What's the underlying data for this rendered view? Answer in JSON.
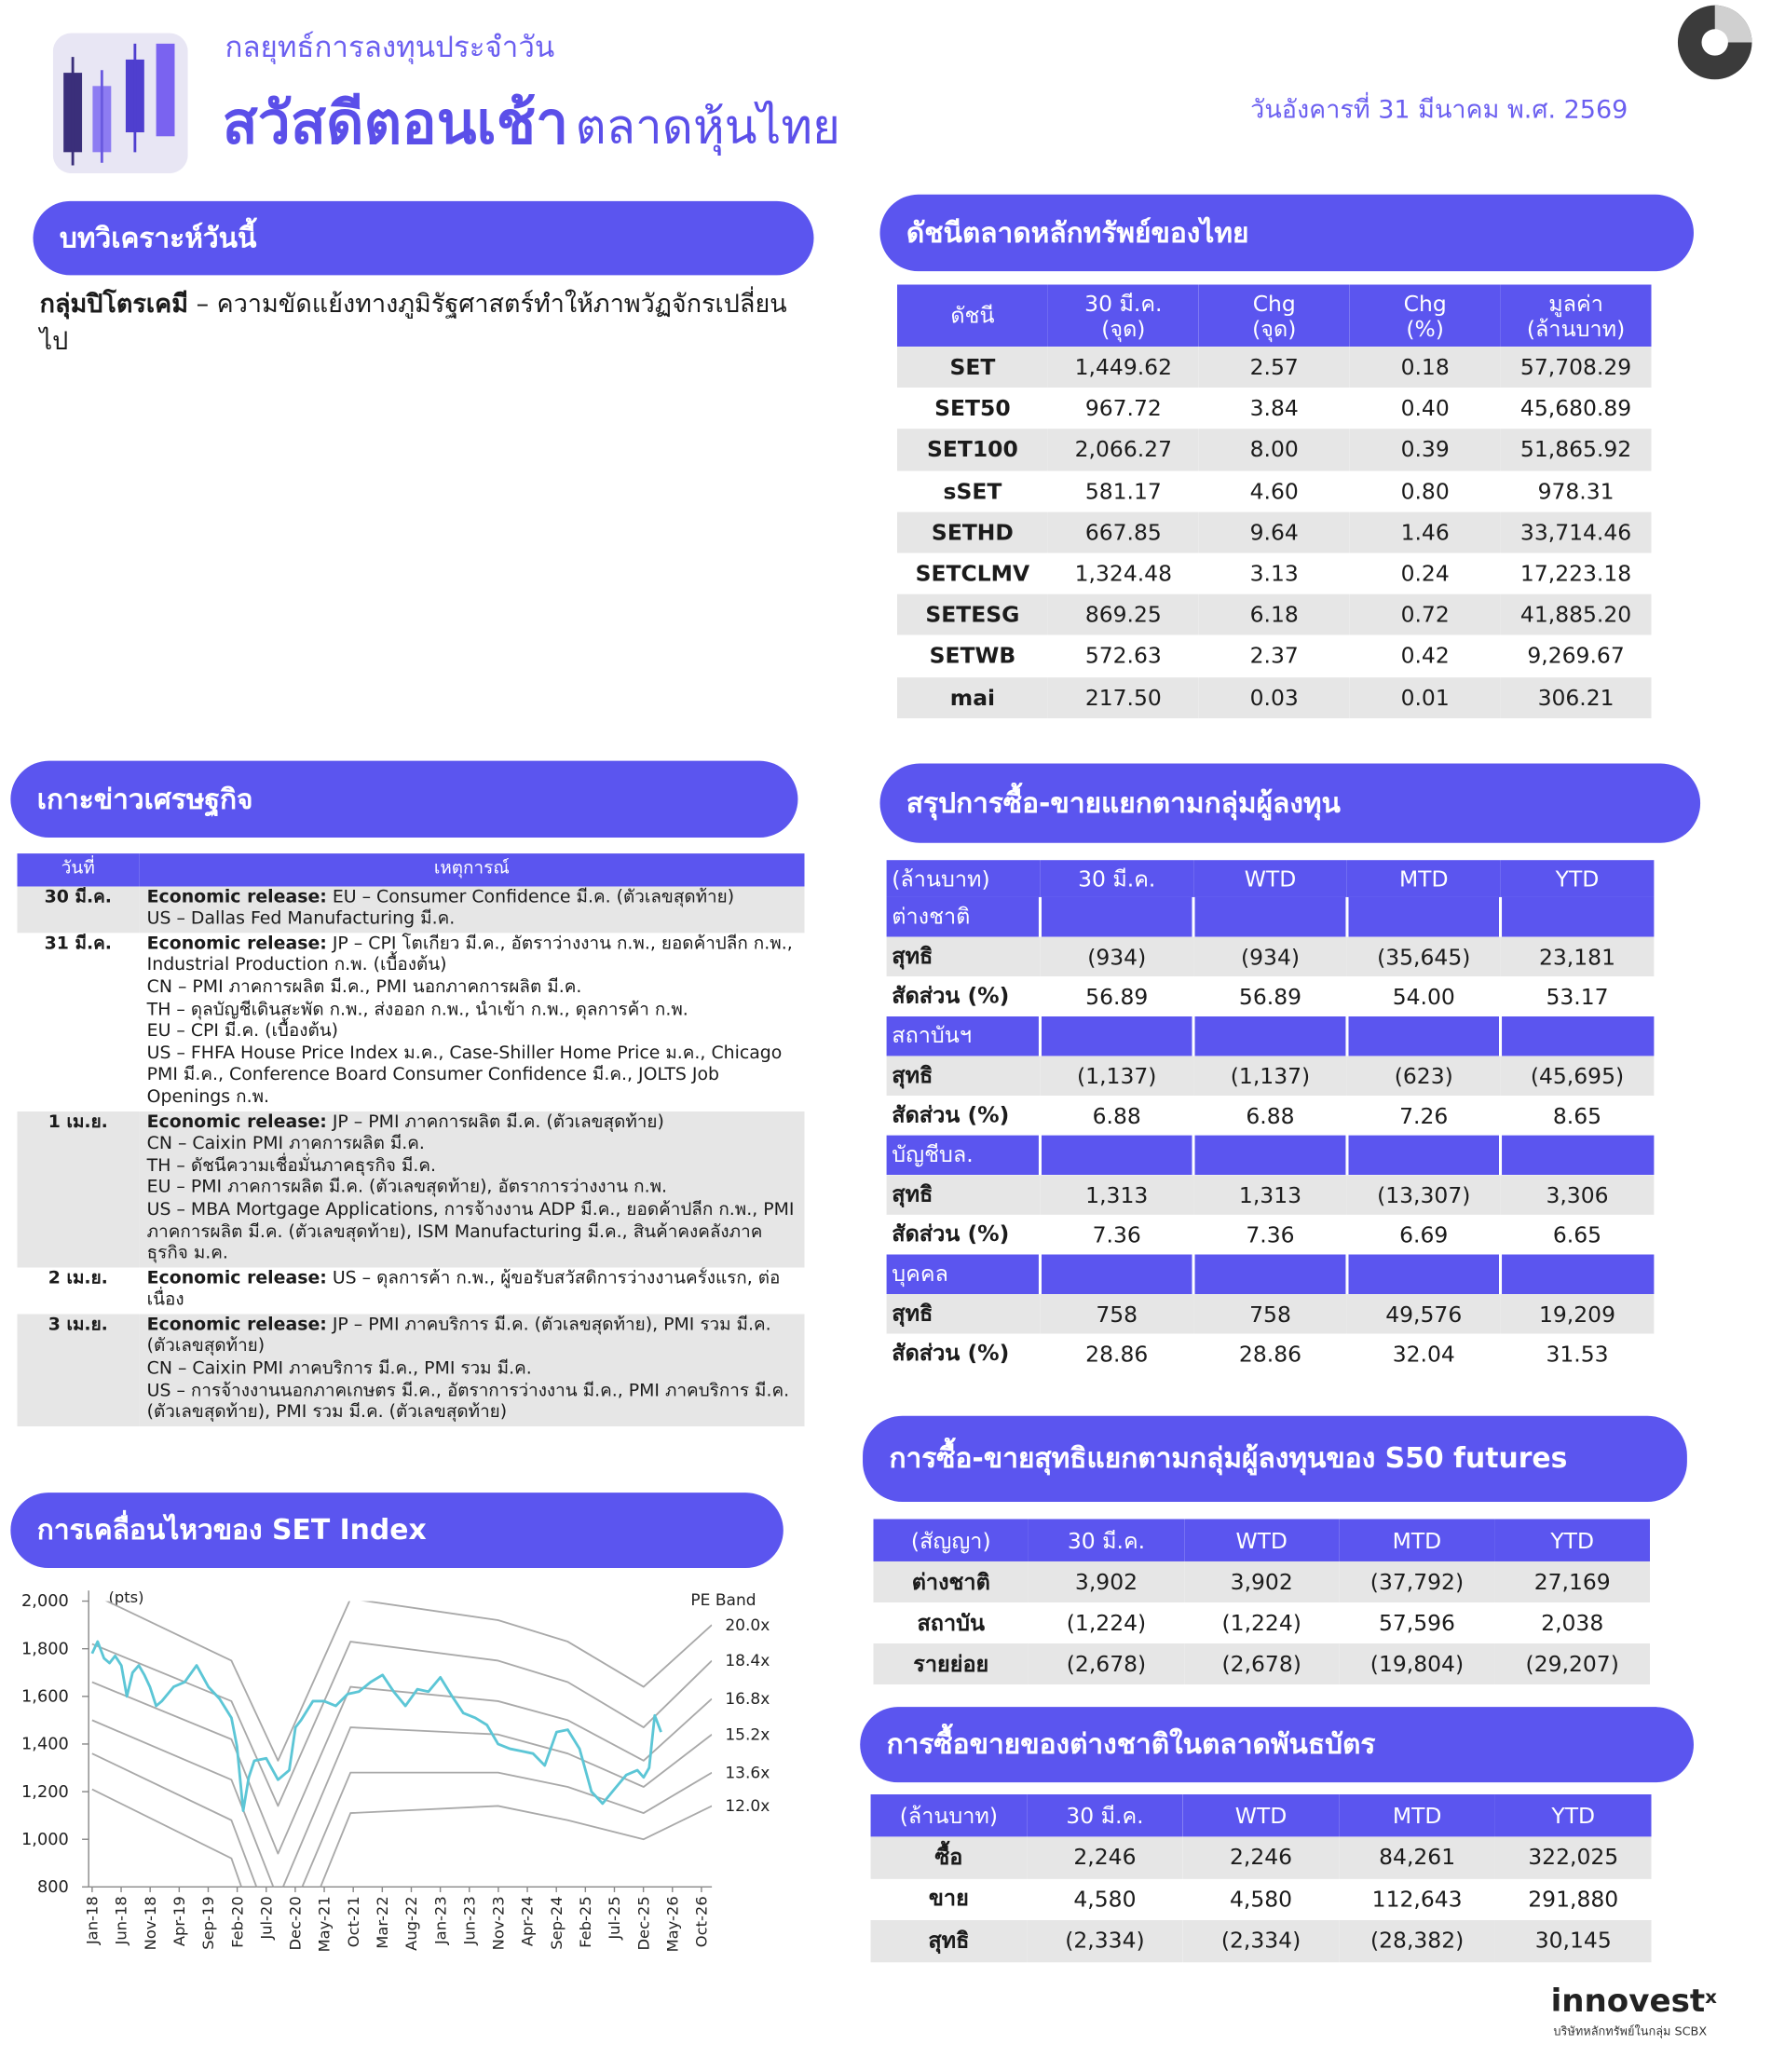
{
  "header": {
    "subtitle": "กลยุทธ์การลงทุนประจำวัน",
    "title_bold": "สวัสดีตอนเช้า",
    "title_rest": "ตลาดหุ้นไทย",
    "date": "วันอังคารที่ 31 มีนาคม พ.ศ. 2569"
  },
  "analysis": {
    "title": "บทวิเคราะห์วันนี้",
    "lead": "กลุ่มปิโตรเคมี",
    "text": "– ความขัดแย้งทางภูมิรัฐศาสตร์ทำให้ภาพวัฏจักรเปลี่ยนไป"
  },
  "index_table": {
    "title": "ดัชนีตลาดหลักทรัพย์ของไทย",
    "columns": [
      "ดัชนี",
      "30 มี.ค.\n(จุด)",
      "Chg\n(จุด)",
      "Chg\n(%)",
      "มูลค่า\n(ล้านบาท)"
    ],
    "rows": [
      [
        "SET",
        "1,449.62",
        "2.57",
        "0.18",
        "57,708.29"
      ],
      [
        "SET50",
        "967.72",
        "3.84",
        "0.40",
        "45,680.89"
      ],
      [
        "SET100",
        "2,066.27",
        "8.00",
        "0.39",
        "51,865.92"
      ],
      [
        "sSET",
        "581.17",
        "4.60",
        "0.80",
        "978.31"
      ],
      [
        "SETHD",
        "667.85",
        "9.64",
        "1.46",
        "33,714.46"
      ],
      [
        "SETCLMV",
        "1,324.48",
        "3.13",
        "0.24",
        "17,223.18"
      ],
      [
        "SETESG",
        "869.25",
        "6.18",
        "0.72",
        "41,885.20"
      ],
      [
        "SETWB",
        "572.63",
        "2.37",
        "0.42",
        "9,269.67"
      ],
      [
        "mai",
        "217.50",
        "0.03",
        "0.01",
        "306.21"
      ]
    ]
  },
  "economic_news": {
    "title": "เกาะข่าวเศรษฐกิจ",
    "columns": [
      "วันที่",
      "เหตุการณ์"
    ],
    "release_label": "Economic release:",
    "rows": [
      {
        "date": "30 มี.ค.",
        "lines": [
          "EU – Consumer Confidence มี.ค. (ตัวเลขสุดท้าย)",
          "US – Dallas Fed Manufacturing มี.ค."
        ]
      },
      {
        "date": "31 มี.ค.",
        "lines": [
          "JP – CPI โตเกียว มี.ค., อัตราว่างงาน ก.พ., ยอดค้าปลีก ก.พ., Industrial Production ก.พ. (เบื้องต้น)",
          "CN – PMI ภาคการผลิต มี.ค., PMI นอกภาคการผลิต มี.ค.",
          "TH – ดุลบัญชีเดินสะพัด ก.พ., ส่งออก ก.พ., นำเข้า ก.พ., ดุลการค้า ก.พ.",
          "EU – CPI มี.ค. (เบื้องต้น)",
          "US – FHFA House Price Index ม.ค., Case-Shiller Home Price ม.ค., Chicago PMI มี.ค., Conference Board Consumer Confidence มี.ค., JOLTS Job Openings ก.พ."
        ]
      },
      {
        "date": "1 เม.ย.",
        "lines": [
          "JP – PMI ภาคการผลิต มี.ค. (ตัวเลขสุดท้าย)",
          "CN – Caixin PMI ภาคการผลิต มี.ค.",
          "TH – ดัชนีความเชื่อมั่นภาคธุรกิจ มี.ค.",
          "EU – PMI ภาคการผลิต มี.ค. (ตัวเลขสุดท้าย), อัตราการว่างงาน ก.พ.",
          "US – MBA Mortgage Applications, การจ้างงาน ADP มี.ค., ยอดค้าปลีก ก.พ., PMI ภาคการผลิต มี.ค. (ตัวเลขสุดท้าย), ISM Manufacturing มี.ค., สินค้าคงคลังภาคธุรกิจ ม.ค."
        ]
      },
      {
        "date": "2 เม.ย.",
        "lines": [
          "US – ดุลการค้า ก.พ., ผู้ขอรับสวัสดิการว่างงานครั้งแรก, ต่อเนื่อง"
        ]
      },
      {
        "date": "3 เม.ย.",
        "lines": [
          "JP – PMI ภาคบริการ มี.ค. (ตัวเลขสุดท้าย), PMI รวม มี.ค. (ตัวเลขสุดท้าย)",
          "CN – Caixin PMI ภาคบริการ มี.ค., PMI รวม มี.ค.",
          "US – การจ้างงานนอกภาคเกษตร มี.ค., อัตราการว่างงาน มี.ค., PMI ภาคบริการ มี.ค. (ตัวเลขสุดท้าย), PMI รวม มี.ค. (ตัวเลขสุดท้าย)"
        ]
      }
    ]
  },
  "investor_flows": {
    "title": "สรุปการซื้อ-ขายแยกตามกลุ่มผู้ลงทุน",
    "columns": [
      "(ล้านบาท)",
      "30 มี.ค.",
      "WTD",
      "MTD",
      "YTD"
    ],
    "groups": [
      {
        "name": "ต่างชาติ",
        "rows": [
          [
            "สุทธิ",
            "(934)",
            "(934)",
            "(35,645)",
            "23,181"
          ],
          [
            "สัดส่วน (%)",
            "56.89",
            "56.89",
            "54.00",
            "53.17"
          ]
        ]
      },
      {
        "name": "สถาบันฯ",
        "rows": [
          [
            "สุทธิ",
            "(1,137)",
            "(1,137)",
            "(623)",
            "(45,695)"
          ],
          [
            "สัดส่วน (%)",
            "6.88",
            "6.88",
            "7.26",
            "8.65"
          ]
        ]
      },
      {
        "name": "บัญชีบล.",
        "rows": [
          [
            "สุทธิ",
            "1,313",
            "1,313",
            "(13,307)",
            "3,306"
          ],
          [
            "สัดส่วน (%)",
            "7.36",
            "7.36",
            "6.69",
            "6.65"
          ]
        ]
      },
      {
        "name": "บุคคล",
        "rows": [
          [
            "สุทธิ",
            "758",
            "758",
            "49,576",
            "19,209"
          ],
          [
            "สัดส่วน (%)",
            "28.86",
            "28.86",
            "32.04",
            "31.53"
          ]
        ]
      }
    ]
  },
  "futures": {
    "title": "การซื้อ-ขายสุทธิแยกตามกลุ่มผู้ลงทุนของ S50 futures",
    "columns": [
      "(สัญญา)",
      "30 มี.ค.",
      "WTD",
      "MTD",
      "YTD"
    ],
    "rows": [
      [
        "ต่างชาติ",
        "3,902",
        "3,902",
        "(37,792)",
        "27,169"
      ],
      [
        "สถาบัน",
        "(1,224)",
        "(1,224)",
        "57,596",
        "2,038"
      ],
      [
        "รายย่อย",
        "(2,678)",
        "(2,678)",
        "(19,804)",
        "(29,207)"
      ]
    ]
  },
  "bonds": {
    "title": "การซื้อขายของต่างชาติในตลาดพันธบัตร",
    "columns": [
      "(ล้านบาท)",
      "30 มี.ค.",
      "WTD",
      "MTD",
      "YTD"
    ],
    "rows": [
      [
        "ซื้อ",
        "2,246",
        "2,246",
        "84,261",
        "322,025"
      ],
      [
        "ขาย",
        "4,580",
        "4,580",
        "112,643",
        "291,880"
      ],
      [
        "สุทธิ",
        "(2,334)",
        "(2,334)",
        "(28,382)",
        "30,145"
      ]
    ]
  },
  "chart_data": {
    "type": "line",
    "title": "การเคลื่อนไหวของ SET Index",
    "y_label": "(pts)",
    "legend_title": "PE Band",
    "xlim": [
      2017.95,
      2026.9
    ],
    "ylim": [
      800,
      2000
    ],
    "yticks": [
      800,
      {
        "value": 1000,
        "label": "1,000"
      },
      {
        "value": 1200,
        "label": "1,200"
      },
      {
        "value": 1400,
        "label": "1,400"
      },
      {
        "value": 1600,
        "label": "1,600"
      },
      {
        "value": 1800,
        "label": "1,800"
      },
      {
        "value": 2000,
        "label": "2,000"
      }
    ],
    "xticks": [
      {
        "value": 2018.0,
        "label": "Jan-18"
      },
      {
        "value": 2018.4167,
        "label": "Jun-18"
      },
      {
        "value": 2018.8333,
        "label": "Nov-18"
      },
      {
        "value": 2019.25,
        "label": "Apr-19"
      },
      {
        "value": 2019.6667,
        "label": "Sep-19"
      },
      {
        "value": 2020.0833,
        "label": "Feb-20"
      },
      {
        "value": 2020.5,
        "label": "Jul-20"
      },
      {
        "value": 2020.9167,
        "label": "Dec-20"
      },
      {
        "value": 2021.3333,
        "label": "May-21"
      },
      {
        "value": 2021.75,
        "label": "Oct-21"
      },
      {
        "value": 2022.1667,
        "label": "Mar-22"
      },
      {
        "value": 2022.5833,
        "label": "Aug-22"
      },
      {
        "value": 2023.0,
        "label": "Jan-23"
      },
      {
        "value": 2023.4167,
        "label": "Jun-23"
      },
      {
        "value": 2023.8333,
        "label": "Nov-23"
      },
      {
        "value": 2024.25,
        "label": "Apr-24"
      },
      {
        "value": 2024.6667,
        "label": "Sep-24"
      },
      {
        "value": 2025.0833,
        "label": "Feb-25"
      },
      {
        "value": 2025.5,
        "label": "Jul-25"
      },
      {
        "value": 2025.9167,
        "label": "Dec-25"
      },
      {
        "value": 2026.3333,
        "label": "May-26"
      },
      {
        "value": 2026.75,
        "label": "Oct-26"
      }
    ],
    "series": [
      {
        "name": "SET Index",
        "color": "#5cc6d6",
        "width": 2,
        "x": [
          2018.0,
          2018.08,
          2018.17,
          2018.25,
          2018.33,
          2018.42,
          2018.5,
          2018.58,
          2018.67,
          2018.75,
          2018.83,
          2018.92,
          2019.0,
          2019.17,
          2019.33,
          2019.5,
          2019.67,
          2019.83,
          2020.0,
          2020.08,
          2020.17,
          2020.25,
          2020.33,
          2020.5,
          2020.67,
          2020.83,
          2020.92,
          2021.0,
          2021.17,
          2021.33,
          2021.5,
          2021.67,
          2021.83,
          2022.0,
          2022.17,
          2022.33,
          2022.5,
          2022.67,
          2022.83,
          2023.0,
          2023.17,
          2023.33,
          2023.5,
          2023.67,
          2023.83,
          2024.0,
          2024.17,
          2024.33,
          2024.5,
          2024.67,
          2024.83,
          2025.0,
          2025.17,
          2025.33,
          2025.5,
          2025.67,
          2025.83,
          2025.92,
          2026.0,
          2026.08,
          2026.17
        ],
        "values": [
          1780,
          1830,
          1760,
          1740,
          1770,
          1730,
          1600,
          1700,
          1730,
          1690,
          1640,
          1560,
          1580,
          1640,
          1660,
          1730,
          1640,
          1590,
          1510,
          1390,
          1120,
          1260,
          1330,
          1340,
          1250,
          1290,
          1470,
          1500,
          1580,
          1580,
          1560,
          1610,
          1620,
          1660,
          1690,
          1620,
          1560,
          1630,
          1620,
          1680,
          1600,
          1530,
          1510,
          1480,
          1400,
          1380,
          1370,
          1360,
          1310,
          1450,
          1460,
          1380,
          1200,
          1150,
          1210,
          1270,
          1290,
          1260,
          1300,
          1520,
          1450
        ]
      },
      {
        "name": "20.0x",
        "color": "#a9a9a9",
        "width": 1.3,
        "x": [
          2018.0,
          2020.0,
          2020.67,
          2021.71,
          2023.83,
          2024.83,
          2025.92,
          2026.9
        ],
        "values": [
          2030,
          1750,
          1330,
          2010,
          1920,
          1830,
          1640,
          1900
        ]
      },
      {
        "name": "18.4x",
        "color": "#a9a9a9",
        "width": 1.3,
        "x": [
          2018.0,
          2020.0,
          2020.67,
          2021.71,
          2023.83,
          2024.83,
          2025.92,
          2026.9
        ],
        "values": [
          1820,
          1580,
          1140,
          1830,
          1750,
          1660,
          1470,
          1750
        ]
      },
      {
        "name": "16.8x",
        "color": "#a9a9a9",
        "width": 1.3,
        "x": [
          2018.0,
          2020.0,
          2020.67,
          2021.71,
          2023.83,
          2024.83,
          2025.92,
          2026.9
        ],
        "values": [
          1660,
          1420,
          940,
          1640,
          1580,
          1500,
          1330,
          1590
        ]
      },
      {
        "name": "15.2x",
        "color": "#a9a9a9",
        "width": 1.3,
        "x": [
          2018.0,
          2020.0,
          2020.67,
          2021.71,
          2023.83,
          2024.83,
          2025.92,
          2026.9
        ],
        "values": [
          1500,
          1250,
          750,
          1470,
          1440,
          1360,
          1220,
          1440
        ]
      },
      {
        "name": "13.6x",
        "color": "#a9a9a9",
        "width": 1.3,
        "x": [
          2018.0,
          2020.0,
          2020.67,
          2021.71,
          2023.83,
          2024.83,
          2025.92,
          2026.9
        ],
        "values": [
          1360,
          1080,
          560,
          1280,
          1280,
          1220,
          1110,
          1280
        ]
      },
      {
        "name": "12.0x",
        "color": "#a9a9a9",
        "width": 1.3,
        "x": [
          2018.0,
          2020.0,
          2020.67,
          2021.71,
          2023.83,
          2024.83,
          2025.92,
          2026.9
        ],
        "values": [
          1210,
          920,
          360,
          1110,
          1140,
          1080,
          1000,
          1140
        ]
      }
    ]
  },
  "footer": {
    "brand": "innovest",
    "brand_mark": "x",
    "tagline": "บริษัทหลักทรัพย์ในกลุ่ม SCBX"
  }
}
